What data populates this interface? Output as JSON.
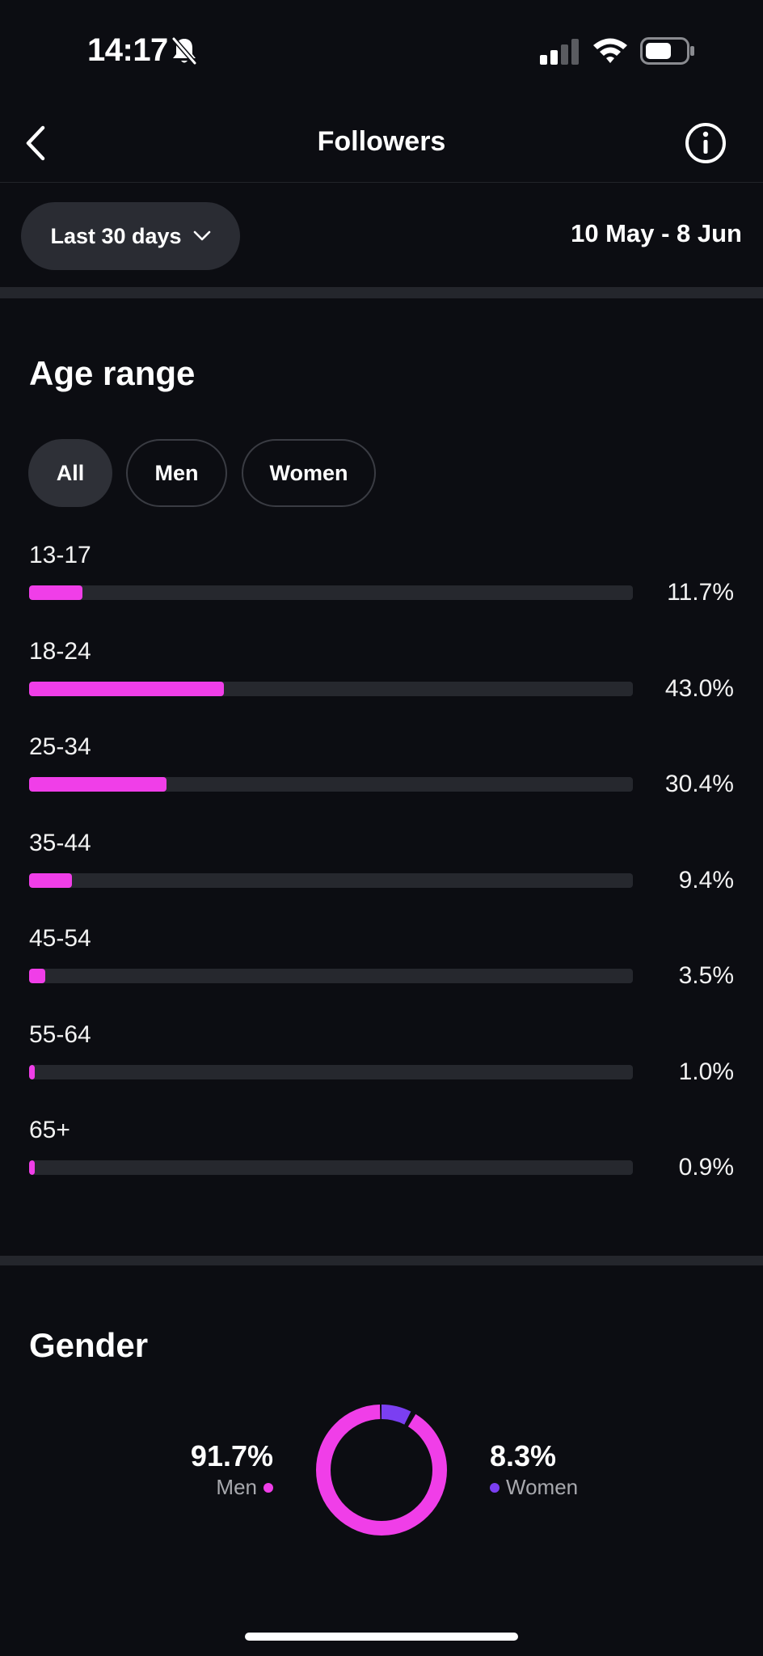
{
  "status_bar": {
    "time": "14:17"
  },
  "header": {
    "title": "Followers"
  },
  "filters": {
    "range_label": "Last 30 days",
    "date_range": "10 May - 8 Jun"
  },
  "age_section": {
    "title": "Age range",
    "chips": [
      "All",
      "Men",
      "Women"
    ],
    "active_chip": "All",
    "rows": [
      {
        "label": "13-17",
        "percent": "11.7%",
        "value": 11.7
      },
      {
        "label": "18-24",
        "percent": "43.0%",
        "value": 43.0
      },
      {
        "label": "25-34",
        "percent": "30.4%",
        "value": 30.4
      },
      {
        "label": "35-44",
        "percent": "9.4%",
        "value": 9.4
      },
      {
        "label": "45-54",
        "percent": "3.5%",
        "value": 3.5
      },
      {
        "label": "55-64",
        "percent": "1.0%",
        "value": 1.0
      },
      {
        "label": "65+",
        "percent": "0.9%",
        "value": 0.9
      }
    ]
  },
  "gender_section": {
    "title": "Gender",
    "men": {
      "percent": "91.7%",
      "label": "Men",
      "value": 91.7
    },
    "women": {
      "percent": "8.3%",
      "label": "Women",
      "value": 8.3
    }
  },
  "colors": {
    "accent_pink": "#f03ee8",
    "accent_purple": "#7b3ff2",
    "track": "#26282e",
    "background": "#0c0d12"
  },
  "icons": [
    "bell-slash-icon",
    "signal-icon",
    "wifi-icon",
    "battery-icon",
    "back-arrow-icon",
    "info-icon",
    "chevron-down-icon"
  ]
}
